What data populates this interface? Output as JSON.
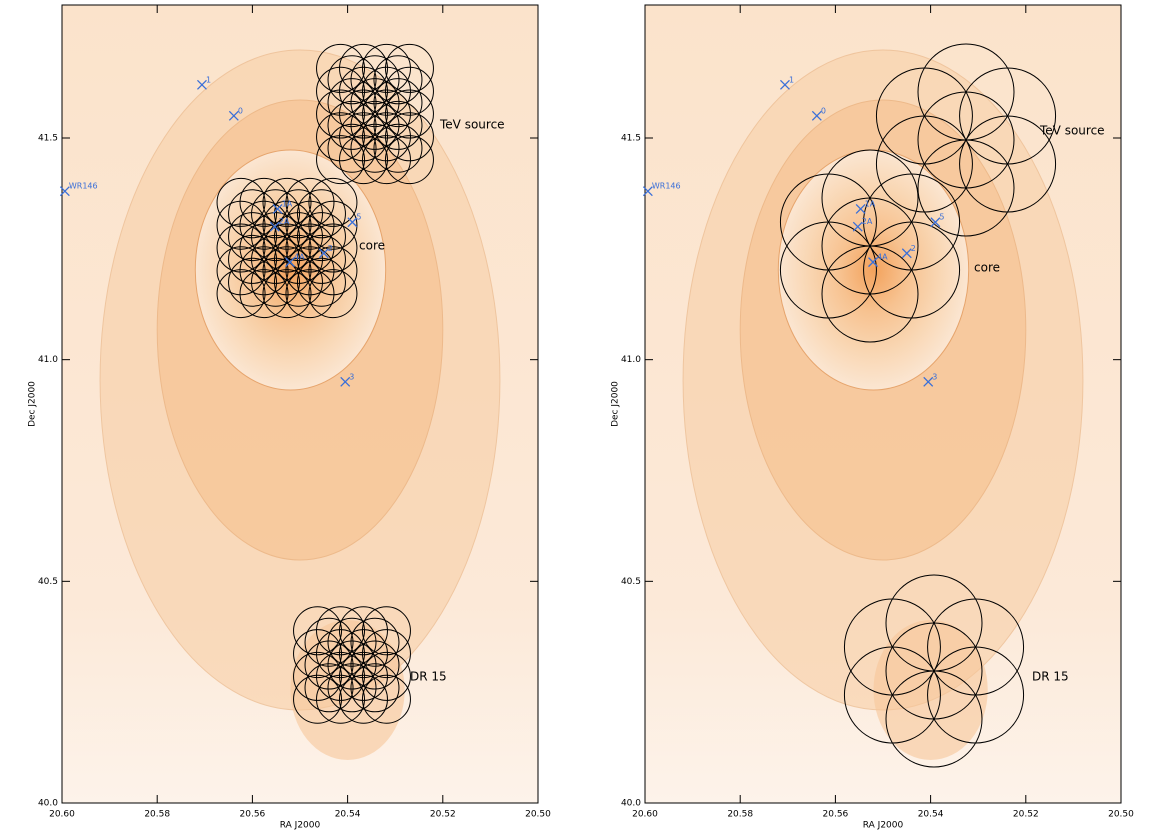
{
  "chart_data": [
    {
      "type": "scatter",
      "x_label": "RA J2000",
      "y_label": "Dec J2000",
      "xlim": [
        20.6,
        20.5
      ],
      "ylim": [
        40.0,
        41.8
      ],
      "xticks": [
        {
          "value": 20.6,
          "label": "20.60"
        },
        20.58,
        20.56,
        20.54,
        20.52,
        {
          "value": 20.5,
          "label": "20.50"
        }
      ],
      "yticks": [
        {
          "value": 40,
          "label": "40.0"
        },
        40.5,
        {
          "value": 41,
          "label": "41.0"
        },
        41.5
      ],
      "color": "#3a6fd8",
      "labels": [
        "WR146",
        "1",
        "0",
        "3",
        "5",
        "2",
        "1A",
        "2A",
        "4A"
      ],
      "x": [
        20.5994,
        20.5706,
        20.5639,
        20.5405,
        20.539,
        20.545,
        20.5547,
        20.5553,
        20.5521
      ],
      "y": [
        41.38,
        41.62,
        41.55,
        40.95,
        41.31,
        41.24,
        41.34,
        41.3,
        41.22
      ],
      "annotations": [
        "TeV source",
        "core",
        "DR 15"
      ]
    },
    {
      "type": "scatter",
      "x_label": "RA J2000",
      "y_label": "Dec J2000",
      "xlim": [
        20.6,
        20.5
      ],
      "ylim": [
        40.0,
        41.8
      ],
      "xticks": [
        {
          "value": 20.6,
          "label": "20.60"
        },
        20.58,
        20.56,
        20.54,
        20.52,
        {
          "value": 20.5,
          "label": "20.50"
        }
      ],
      "yticks": [
        {
          "value": 40,
          "label": "40.0"
        },
        40.5,
        {
          "value": 41,
          "label": "41.0"
        },
        41.5
      ],
      "color": "#3a6fd8",
      "labels": [
        "WR146",
        "1",
        "0",
        "3",
        "5",
        "2",
        "1A",
        "2A",
        "4A"
      ],
      "x": [
        20.5994,
        20.5706,
        20.5639,
        20.5405,
        20.539,
        20.545,
        20.5547,
        20.5553,
        20.5521
      ],
      "y": [
        41.38,
        41.62,
        41.55,
        40.95,
        41.31,
        41.24,
        41.34,
        41.3,
        41.22
      ],
      "annotations": [
        "TeV source",
        "core",
        "DR 15"
      ]
    }
  ]
}
